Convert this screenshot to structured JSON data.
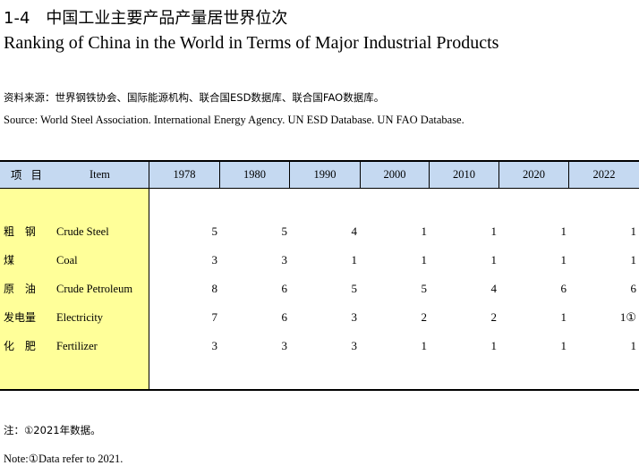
{
  "title_cn": "1-4　中国工业主要产品产量居世界位次",
  "title_en": "Ranking of China in the World in Terms of Major Industrial Products",
  "source_cn": "资料来源：世界钢铁协会、国际能源机构、联合国ESD数据库、联合国FAO数据库。",
  "source_en": "Source: World Steel Association. International Energy Agency. UN ESD Database. UN FAO Database.",
  "table": {
    "header_cn": "项 目",
    "header_en": "Item",
    "years": [
      "1978",
      "1980",
      "1990",
      "2000",
      "2010",
      "2020",
      "2022"
    ],
    "rows": [
      {
        "cn": "粗 钢",
        "en": "Crude Steel",
        "values": [
          "5",
          "5",
          "4",
          "1",
          "1",
          "1",
          "1"
        ]
      },
      {
        "cn": "煤",
        "en": "Coal",
        "values": [
          "3",
          "3",
          "1",
          "1",
          "1",
          "1",
          "1"
        ]
      },
      {
        "cn": "原 油",
        "en": "Crude Petroleum",
        "values": [
          "8",
          "6",
          "5",
          "5",
          "4",
          "6",
          "6"
        ]
      },
      {
        "cn": "发电量",
        "en": "Electricity",
        "values": [
          "7",
          "6",
          "3",
          "2",
          "2",
          "1",
          "1①"
        ]
      },
      {
        "cn": "化 肥",
        "en": "Fertilizer",
        "values": [
          "3",
          "3",
          "3",
          "1",
          "1",
          "1",
          "1"
        ]
      }
    ]
  },
  "note_cn": "注：①2021年数据。",
  "note_en": "Note:①Data refer to 2021."
}
